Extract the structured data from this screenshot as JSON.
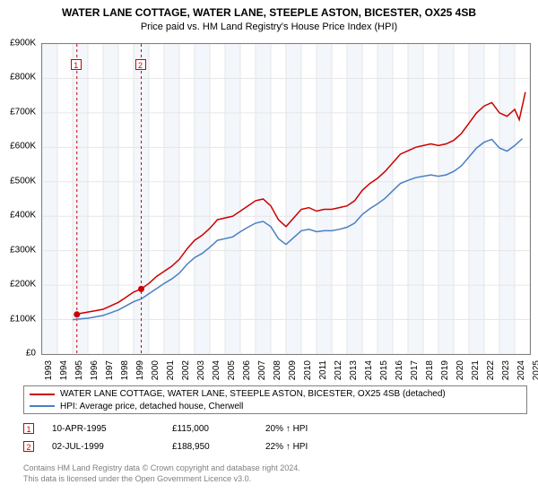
{
  "title": "WATER LANE COTTAGE, WATER LANE, STEEPLE ASTON, BICESTER, OX25 4SB",
  "subtitle": "Price paid vs. HM Land Registry's House Price Index (HPI)",
  "chart": {
    "type": "line",
    "background_color": "#ffffff",
    "plot_border_color": "#808080",
    "grid_color": "#e6e6e6",
    "year_band_colors": {
      "even": "#ffffff",
      "odd": "#f3f6fb"
    },
    "ylim": [
      0,
      900000
    ],
    "ytick_step": 100000,
    "yticks": [
      "£0",
      "£100K",
      "£200K",
      "£300K",
      "£400K",
      "£500K",
      "£600K",
      "£700K",
      "£800K",
      "£900K"
    ],
    "y_fontsize": 10,
    "xlim": [
      1993,
      2025
    ],
    "xticks": [
      1993,
      1994,
      1995,
      1996,
      1997,
      1998,
      1999,
      2000,
      2001,
      2002,
      2003,
      2004,
      2005,
      2006,
      2007,
      2008,
      2009,
      2010,
      2011,
      2012,
      2013,
      2014,
      2015,
      2016,
      2017,
      2018,
      2019,
      2020,
      2021,
      2022,
      2023,
      2024,
      2025
    ],
    "x_fontsize": 10,
    "x_label_rotation": -90,
    "series": [
      {
        "name": "property",
        "label": "WATER LANE COTTAGE, WATER LANE, STEEPLE ASTON, BICESTER, OX25 4SB (detached)",
        "color": "#cc0000",
        "line_width": 1.5,
        "points": [
          [
            1995.28,
            115000
          ],
          [
            1995.5,
            118000
          ],
          [
            1996,
            122000
          ],
          [
            1996.5,
            126000
          ],
          [
            1997,
            130000
          ],
          [
            1997.5,
            140000
          ],
          [
            1998,
            150000
          ],
          [
            1998.5,
            165000
          ],
          [
            1999,
            180000
          ],
          [
            1999.5,
            188950
          ],
          [
            2000,
            205000
          ],
          [
            2000.5,
            225000
          ],
          [
            2001,
            240000
          ],
          [
            2001.5,
            255000
          ],
          [
            2002,
            275000
          ],
          [
            2002.5,
            305000
          ],
          [
            2003,
            330000
          ],
          [
            2003.5,
            345000
          ],
          [
            2004,
            365000
          ],
          [
            2004.5,
            390000
          ],
          [
            2005,
            395000
          ],
          [
            2005.5,
            400000
          ],
          [
            2006,
            415000
          ],
          [
            2006.5,
            430000
          ],
          [
            2007,
            445000
          ],
          [
            2007.5,
            450000
          ],
          [
            2008,
            430000
          ],
          [
            2008.5,
            390000
          ],
          [
            2009,
            370000
          ],
          [
            2009.5,
            395000
          ],
          [
            2010,
            420000
          ],
          [
            2010.5,
            425000
          ],
          [
            2011,
            415000
          ],
          [
            2011.5,
            420000
          ],
          [
            2012,
            420000
          ],
          [
            2012.5,
            425000
          ],
          [
            2013,
            430000
          ],
          [
            2013.5,
            445000
          ],
          [
            2014,
            475000
          ],
          [
            2014.5,
            495000
          ],
          [
            2015,
            510000
          ],
          [
            2015.5,
            530000
          ],
          [
            2016,
            555000
          ],
          [
            2016.5,
            580000
          ],
          [
            2017,
            590000
          ],
          [
            2017.5,
            600000
          ],
          [
            2018,
            605000
          ],
          [
            2018.5,
            610000
          ],
          [
            2019,
            605000
          ],
          [
            2019.5,
            610000
          ],
          [
            2020,
            620000
          ],
          [
            2020.5,
            640000
          ],
          [
            2021,
            670000
          ],
          [
            2021.5,
            700000
          ],
          [
            2022,
            720000
          ],
          [
            2022.5,
            730000
          ],
          [
            2023,
            700000
          ],
          [
            2023.5,
            690000
          ],
          [
            2024,
            710000
          ],
          [
            2024.3,
            680000
          ],
          [
            2024.7,
            760000
          ]
        ]
      },
      {
        "name": "hpi",
        "label": "HPI: Average price, detached house, Cherwell",
        "color": "#4a7fc4",
        "line_width": 1.5,
        "points": [
          [
            1995,
            100000
          ],
          [
            1995.5,
            102000
          ],
          [
            1996,
            104000
          ],
          [
            1996.5,
            108000
          ],
          [
            1997,
            112000
          ],
          [
            1997.5,
            120000
          ],
          [
            1998,
            128000
          ],
          [
            1998.5,
            140000
          ],
          [
            1999,
            152000
          ],
          [
            1999.5,
            160000
          ],
          [
            2000,
            175000
          ],
          [
            2000.5,
            190000
          ],
          [
            2001,
            205000
          ],
          [
            2001.5,
            218000
          ],
          [
            2002,
            235000
          ],
          [
            2002.5,
            260000
          ],
          [
            2003,
            280000
          ],
          [
            2003.5,
            292000
          ],
          [
            2004,
            310000
          ],
          [
            2004.5,
            330000
          ],
          [
            2005,
            335000
          ],
          [
            2005.5,
            340000
          ],
          [
            2006,
            355000
          ],
          [
            2006.5,
            368000
          ],
          [
            2007,
            380000
          ],
          [
            2007.5,
            385000
          ],
          [
            2008,
            370000
          ],
          [
            2008.5,
            335000
          ],
          [
            2009,
            318000
          ],
          [
            2009.5,
            338000
          ],
          [
            2010,
            358000
          ],
          [
            2010.5,
            362000
          ],
          [
            2011,
            355000
          ],
          [
            2011.5,
            358000
          ],
          [
            2012,
            358000
          ],
          [
            2012.5,
            362000
          ],
          [
            2013,
            368000
          ],
          [
            2013.5,
            380000
          ],
          [
            2014,
            405000
          ],
          [
            2014.5,
            422000
          ],
          [
            2015,
            436000
          ],
          [
            2015.5,
            452000
          ],
          [
            2016,
            474000
          ],
          [
            2016.5,
            495000
          ],
          [
            2017,
            504000
          ],
          [
            2017.5,
            512000
          ],
          [
            2018,
            516000
          ],
          [
            2018.5,
            520000
          ],
          [
            2019,
            516000
          ],
          [
            2019.5,
            520000
          ],
          [
            2020,
            530000
          ],
          [
            2020.5,
            546000
          ],
          [
            2021,
            572000
          ],
          [
            2021.5,
            598000
          ],
          [
            2022,
            615000
          ],
          [
            2022.5,
            623000
          ],
          [
            2023,
            598000
          ],
          [
            2023.5,
            589000
          ],
          [
            2024,
            605000
          ],
          [
            2024.5,
            625000
          ]
        ]
      }
    ],
    "transaction_markers": [
      {
        "n": "1",
        "x": 1995.28,
        "y": 115000,
        "vline_color": "#cc0000",
        "vline_dash": "3,3"
      },
      {
        "n": "2",
        "x": 1999.5,
        "y": 188950,
        "vline_color": "#cc0000",
        "vline_dash": "3,3"
      }
    ]
  },
  "legend": {
    "border_color": "#808080",
    "fontsize": 10
  },
  "transactions": [
    {
      "n": "1",
      "date": "10-APR-1995",
      "price": "£115,000",
      "pct": "20% ↑ HPI"
    },
    {
      "n": "2",
      "date": "02-JUL-1999",
      "price": "£188,950",
      "pct": "22% ↑ HPI"
    }
  ],
  "footer": {
    "line1": "Contains HM Land Registry data © Crown copyright and database right 2024.",
    "line2": "This data is licensed under the Open Government Licence v3.0.",
    "color": "#808080",
    "fontsize": 9
  }
}
